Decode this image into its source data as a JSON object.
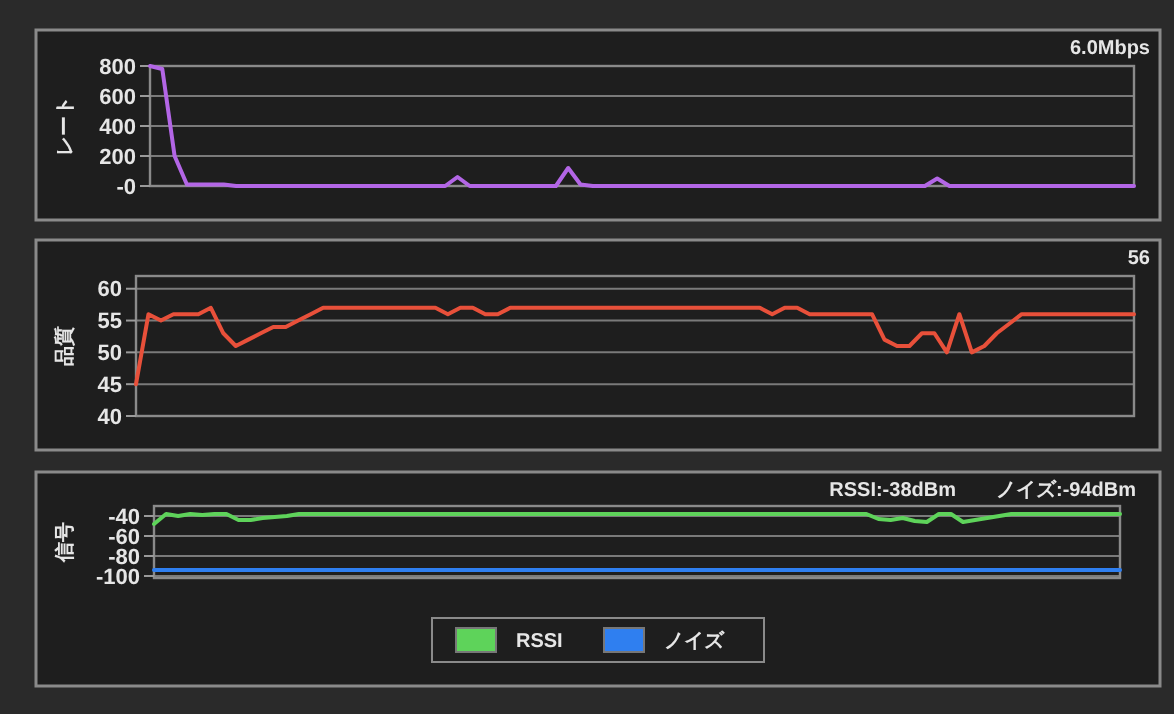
{
  "chart_data": [
    {
      "type": "line",
      "ylabel": "レート",
      "annotations": [
        "6.0Mbps"
      ],
      "categories": [
        null,
        null,
        null,
        null,
        null,
        null,
        null,
        null,
        null,
        null,
        null,
        null,
        null,
        null,
        null,
        null,
        null,
        null,
        null,
        null,
        null,
        null,
        null,
        null,
        null,
        null,
        null,
        null,
        null,
        null,
        null,
        null,
        null,
        null,
        null,
        null,
        null,
        null,
        null,
        null,
        null,
        null,
        null,
        null,
        null,
        null,
        null,
        null,
        null,
        null,
        null,
        null,
        null,
        null,
        null,
        null,
        null,
        null,
        null,
        null,
        null,
        null,
        null,
        null,
        null,
        null,
        null,
        null,
        null,
        null,
        null,
        null,
        null,
        null,
        null,
        null,
        null,
        null,
        null,
        null,
        null
      ],
      "series": [
        {
          "color": "#b366e6",
          "values": [
            800,
            780,
            200,
            10,
            10,
            10,
            10,
            0,
            0,
            0,
            0,
            0,
            0,
            0,
            0,
            0,
            0,
            0,
            0,
            0,
            0,
            0,
            0,
            0,
            0,
            60,
            0,
            0,
            0,
            0,
            0,
            0,
            0,
            0,
            120,
            10,
            0,
            0,
            0,
            0,
            0,
            0,
            0,
            0,
            0,
            0,
            0,
            0,
            0,
            0,
            0,
            0,
            0,
            0,
            0,
            0,
            0,
            0,
            0,
            0,
            0,
            0,
            0,
            0,
            50,
            0,
            0,
            0,
            0,
            0,
            0,
            0,
            0,
            0,
            0,
            0,
            0,
            0,
            0,
            0,
            0
          ]
        }
      ],
      "ylim": [
        0,
        800
      ],
      "yticks": [
        {
          "value": 0,
          "label": "-0"
        },
        200,
        400,
        600,
        800
      ],
      "grid": "y",
      "tick_labels": "y",
      "legend": false,
      "marker": "none",
      "line_style": "solid"
    },
    {
      "type": "line",
      "ylabel": "品質",
      "annotations": [
        "56"
      ],
      "categories": [
        null,
        null,
        null,
        null,
        null,
        null,
        null,
        null,
        null,
        null,
        null,
        null,
        null,
        null,
        null,
        null,
        null,
        null,
        null,
        null,
        null,
        null,
        null,
        null,
        null,
        null,
        null,
        null,
        null,
        null,
        null,
        null,
        null,
        null,
        null,
        null,
        null,
        null,
        null,
        null,
        null,
        null,
        null,
        null,
        null,
        null,
        null,
        null,
        null,
        null,
        null,
        null,
        null,
        null,
        null,
        null,
        null,
        null,
        null,
        null,
        null,
        null,
        null,
        null,
        null,
        null,
        null,
        null,
        null,
        null,
        null,
        null,
        null,
        null,
        null,
        null,
        null,
        null,
        null,
        null,
        null
      ],
      "series": [
        {
          "color": "#e8503a",
          "values": [
            45,
            56,
            55,
            56,
            56,
            56,
            57,
            53,
            51,
            52,
            53,
            54,
            54,
            55,
            56,
            57,
            57,
            57,
            57,
            57,
            57,
            57,
            57,
            57,
            57,
            56,
            57,
            57,
            56,
            56,
            57,
            57,
            57,
            57,
            57,
            57,
            57,
            57,
            57,
            57,
            57,
            57,
            57,
            57,
            57,
            57,
            57,
            57,
            57,
            57,
            57,
            56,
            57,
            57,
            56,
            56,
            56,
            56,
            56,
            56,
            52,
            51,
            51,
            53,
            53,
            50,
            56,
            50,
            51,
            53,
            54.5,
            56,
            56,
            56,
            56,
            56,
            56,
            56,
            56,
            56,
            56
          ]
        }
      ],
      "ylim": [
        40,
        62
      ],
      "yticks": [
        40,
        45,
        50,
        55,
        60
      ],
      "grid": "y",
      "tick_labels": "y",
      "legend": false,
      "marker": "none",
      "line_style": "solid"
    },
    {
      "type": "line",
      "ylabel": "信号",
      "annotations": [
        "RSSI:-38dBm",
        "ノイズ:-94dBm"
      ],
      "categories": [
        null,
        null,
        null,
        null,
        null,
        null,
        null,
        null,
        null,
        null,
        null,
        null,
        null,
        null,
        null,
        null,
        null,
        null,
        null,
        null,
        null,
        null,
        null,
        null,
        null,
        null,
        null,
        null,
        null,
        null,
        null,
        null,
        null,
        null,
        null,
        null,
        null,
        null,
        null,
        null,
        null,
        null,
        null,
        null,
        null,
        null,
        null,
        null,
        null,
        null,
        null,
        null,
        null,
        null,
        null,
        null,
        null,
        null,
        null,
        null,
        null,
        null,
        null,
        null,
        null,
        null,
        null,
        null,
        null,
        null,
        null,
        null,
        null,
        null,
        null,
        null,
        null,
        null,
        null,
        null,
        null
      ],
      "series": [
        {
          "name": "RSSI",
          "color": "#5ed35a",
          "values": [
            -48,
            -38,
            -40,
            -38,
            -39,
            -38,
            -38,
            -44,
            -44,
            -42,
            -41,
            -40,
            -38,
            -38,
            -38,
            -38,
            -38,
            -38,
            -38,
            -38,
            -38,
            -38,
            -38,
            -38,
            -38,
            -38,
            -38,
            -38,
            -38,
            -38,
            -38,
            -38,
            -38,
            -38,
            -38,
            -38,
            -38,
            -38,
            -38,
            -38,
            -38,
            -38,
            -38,
            -38,
            -38,
            -38,
            -38,
            -38,
            -38,
            -38,
            -38,
            -38,
            -38,
            -38,
            -38,
            -38,
            -38,
            -38,
            -38,
            -38,
            -43,
            -44,
            -42,
            -45,
            -46,
            -38,
            -38,
            -46,
            -44,
            -42,
            -40,
            -38,
            -38,
            -38,
            -38,
            -38,
            -38,
            -38,
            -38,
            -38,
            -38
          ]
        },
        {
          "name": "ノイズ",
          "color": "#2f7ff0",
          "values": [
            -94,
            -94,
            -94,
            -94,
            -94,
            -94,
            -94,
            -94,
            -94,
            -94,
            -94,
            -94,
            -94,
            -94,
            -94,
            -94,
            -94,
            -94,
            -94,
            -94,
            -94,
            -94,
            -94,
            -94,
            -94,
            -94,
            -94,
            -94,
            -94,
            -94,
            -94,
            -94,
            -94,
            -94,
            -94,
            -94,
            -94,
            -94,
            -94,
            -94,
            -94,
            -94,
            -94,
            -94,
            -94,
            -94,
            -94,
            -94,
            -94,
            -94,
            -94,
            -94,
            -94,
            -94,
            -94,
            -94,
            -94,
            -94,
            -94,
            -94,
            -94,
            -94,
            -94,
            -94,
            -94,
            -94,
            -94,
            -94,
            -94,
            -94,
            -94,
            -94,
            -94,
            -94,
            -94,
            -94,
            -94,
            -94,
            -94,
            -94,
            -94
          ]
        }
      ],
      "ylim": [
        -102,
        -30
      ],
      "yticks": [
        -100,
        -80,
        -60,
        -40
      ],
      "grid": "y",
      "tick_labels": "y",
      "legend": "bottom",
      "marker": "none",
      "line_style": "solid"
    }
  ]
}
